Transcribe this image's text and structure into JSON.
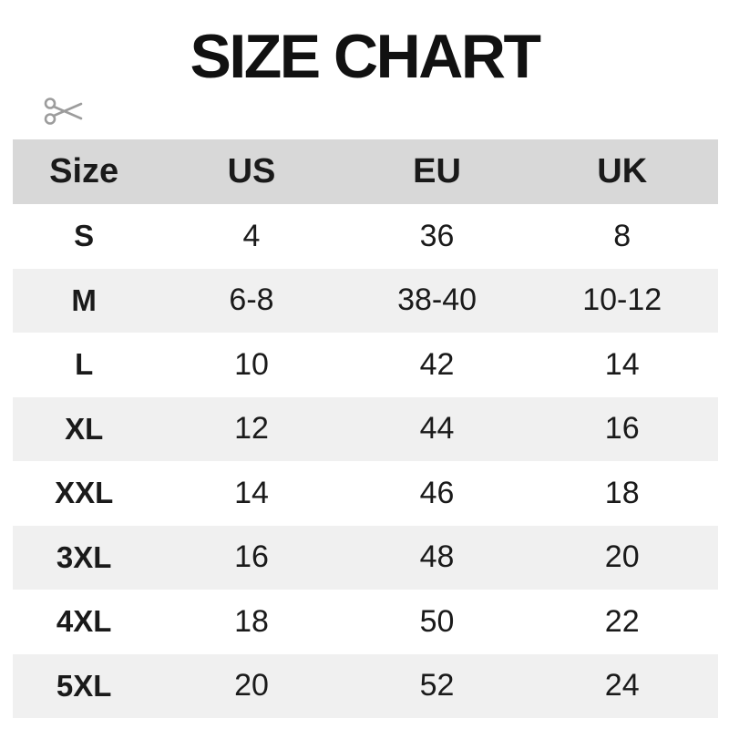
{
  "title": "SIZE CHART",
  "cut_line": {
    "icon": "scissors-icon",
    "style": "dash-dot"
  },
  "chart_data": {
    "type": "table",
    "title": "SIZE CHART",
    "columns": [
      "Size",
      "US",
      "EU",
      "UK"
    ],
    "rows": [
      [
        "S",
        "4",
        "36",
        "8"
      ],
      [
        "M",
        "6-8",
        "38-40",
        "10-12"
      ],
      [
        "L",
        "10",
        "42",
        "14"
      ],
      [
        "XL",
        "12",
        "44",
        "16"
      ],
      [
        "XXL",
        "14",
        "46",
        "18"
      ],
      [
        "3XL",
        "16",
        "48",
        "20"
      ],
      [
        "4XL",
        "18",
        "50",
        "22"
      ],
      [
        "5XL",
        "20",
        "52",
        "24"
      ]
    ],
    "layout": {
      "header_background": "#d8d8d8",
      "alternating_row_background": "#f0f0f0",
      "gridlines": "none"
    }
  },
  "colors": {
    "header_bg": "#d8d8d8",
    "row_alt_bg": "#f0f0f0",
    "text": "#1a1a1a",
    "cut_line": "#a5a5a5"
  }
}
